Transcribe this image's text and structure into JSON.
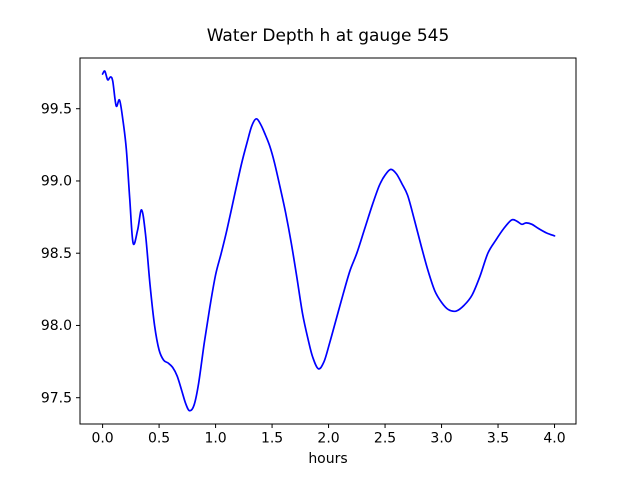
{
  "figure": {
    "background": "#ffffff"
  },
  "chart_data": {
    "type": "line",
    "title": "Water Depth h at gauge 545",
    "xlabel": "hours",
    "ylabel": "",
    "grid": false,
    "legend_position": "none",
    "line_color": "#0000ff",
    "line_width": 1.7,
    "axis_color": "#000000",
    "xlim": [
      -0.2,
      4.19
    ],
    "ylim": [
      97.318,
      99.851
    ],
    "xticks": [
      0.0,
      0.5,
      1.0,
      1.5,
      2.0,
      2.5,
      3.0,
      3.5,
      4.0
    ],
    "xtick_labels": [
      "0.0",
      "0.5",
      "1.0",
      "1.5",
      "2.0",
      "2.5",
      "3.0",
      "3.5",
      "4.0"
    ],
    "yticks": [
      97.5,
      98.0,
      98.5,
      99.0,
      99.5
    ],
    "ytick_labels": [
      "97.5",
      "98.0",
      "98.5",
      "99.0",
      "99.5"
    ],
    "series": [
      {
        "name": "water-depth-gauge-545",
        "x": [
          0.0,
          0.02,
          0.045,
          0.07,
          0.09,
          0.12,
          0.15,
          0.18,
          0.21,
          0.24,
          0.27,
          0.31,
          0.345,
          0.38,
          0.42,
          0.46,
          0.5,
          0.54,
          0.58,
          0.62,
          0.66,
          0.7,
          0.735,
          0.77,
          0.81,
          0.85,
          0.9,
          0.95,
          1.0,
          1.05,
          1.1,
          1.17,
          1.23,
          1.28,
          1.32,
          1.36,
          1.4,
          1.44,
          1.48,
          1.52,
          1.57,
          1.62,
          1.67,
          1.72,
          1.77,
          1.82,
          1.86,
          1.91,
          1.96,
          2.01,
          2.07,
          2.13,
          2.19,
          2.25,
          2.32,
          2.39,
          2.45,
          2.5,
          2.55,
          2.6,
          2.65,
          2.7,
          2.76,
          2.82,
          2.88,
          2.94,
          3.0,
          3.06,
          3.13,
          3.2,
          3.27,
          3.34,
          3.41,
          3.48,
          3.55,
          3.62,
          3.67,
          3.71,
          3.75,
          3.8,
          3.86,
          3.93,
          4.0
        ],
        "y": [
          99.74,
          99.76,
          99.7,
          99.72,
          99.69,
          99.52,
          99.56,
          99.42,
          99.22,
          98.88,
          98.57,
          98.66,
          98.8,
          98.63,
          98.28,
          98.0,
          97.83,
          97.76,
          97.74,
          97.71,
          97.65,
          97.55,
          97.46,
          97.41,
          97.45,
          97.6,
          97.88,
          98.13,
          98.35,
          98.5,
          98.66,
          98.91,
          99.12,
          99.27,
          99.38,
          99.43,
          99.39,
          99.32,
          99.24,
          99.13,
          98.96,
          98.78,
          98.57,
          98.33,
          98.08,
          97.9,
          97.78,
          97.7,
          97.75,
          97.88,
          98.05,
          98.22,
          98.38,
          98.5,
          98.67,
          98.84,
          98.97,
          99.04,
          99.08,
          99.05,
          98.98,
          98.9,
          98.73,
          98.55,
          98.38,
          98.24,
          98.16,
          98.11,
          98.1,
          98.14,
          98.21,
          98.34,
          98.5,
          98.59,
          98.67,
          98.73,
          98.72,
          98.7,
          98.71,
          98.7,
          98.67,
          98.64,
          98.62
        ]
      }
    ]
  }
}
